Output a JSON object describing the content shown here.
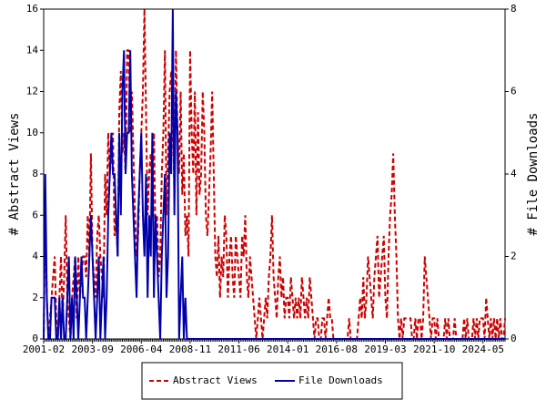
{
  "chart_data": {
    "type": "line",
    "ylabel": "# Abstract Views",
    "y2label": "# File Downloads",
    "ylim": [
      0,
      16
    ],
    "yticks": [
      0,
      2,
      4,
      6,
      8,
      10,
      12,
      14,
      16
    ],
    "y2lim": [
      0,
      8
    ],
    "y2ticks": [
      0,
      2,
      4,
      6,
      8
    ],
    "legend": "bottom",
    "categories": [
      "2001-02",
      null,
      null,
      null,
      null,
      null,
      null,
      null,
      null,
      null,
      null,
      null,
      null,
      null,
      null,
      null,
      null,
      null,
      null,
      null,
      null,
      null,
      null,
      null,
      null,
      null,
      null,
      null,
      null,
      null,
      null,
      "2003-09",
      null,
      null,
      null,
      null,
      null,
      null,
      null,
      null,
      null,
      null,
      null,
      null,
      null,
      null,
      null,
      null,
      null,
      null,
      null,
      null,
      null,
      null,
      null,
      null,
      null,
      null,
      null,
      null,
      null,
      null,
      "2006-04",
      null,
      null,
      null,
      null,
      null,
      null,
      null,
      null,
      null,
      null,
      null,
      null,
      null,
      null,
      null,
      null,
      null,
      null,
      null,
      null,
      null,
      null,
      null,
      null,
      null,
      null,
      null,
      null,
      null,
      null,
      "2008-11",
      null,
      null,
      null,
      null,
      null,
      null,
      null,
      null,
      null,
      null,
      null,
      null,
      null,
      null,
      null,
      null,
      null,
      null,
      null,
      null,
      null,
      null,
      null,
      null,
      null,
      null,
      null,
      null,
      null,
      null,
      "2011-06",
      null,
      null,
      null,
      null,
      null,
      null,
      null,
      null,
      null,
      null,
      null,
      null,
      null,
      null,
      null,
      null,
      null,
      null,
      null,
      null,
      null,
      null,
      null,
      null,
      null,
      null,
      null,
      null,
      null,
      null,
      "2014-01",
      null,
      null,
      null,
      null,
      null,
      null,
      null,
      null,
      null,
      null,
      null,
      null,
      null,
      null,
      null,
      null,
      null,
      null,
      null,
      null,
      null,
      null,
      null,
      null,
      null,
      null,
      null,
      null,
      null,
      null,
      "2016-08",
      null,
      null,
      null,
      null,
      null,
      null,
      null,
      null,
      null,
      null,
      null,
      null,
      null,
      null,
      null,
      null,
      null,
      null,
      null,
      null,
      null,
      null,
      null,
      null,
      null,
      null,
      null,
      null,
      null,
      null,
      "2019-03",
      null,
      null,
      null,
      null,
      null,
      null,
      null,
      null,
      null,
      null,
      null,
      null,
      null,
      null,
      null,
      null,
      null,
      null,
      null,
      null,
      null,
      null,
      null,
      null,
      null,
      null,
      null,
      null,
      null,
      null,
      "2021-10",
      null,
      null,
      null,
      null,
      null,
      null,
      null,
      null,
      null,
      null,
      null,
      null,
      null,
      null,
      null,
      null,
      null,
      null,
      null,
      null,
      null,
      null,
      null,
      null,
      null,
      null,
      null,
      null,
      null,
      null,
      "2024-05",
      null,
      null,
      null,
      null,
      null,
      null,
      null,
      null,
      null,
      null,
      null,
      null,
      null,
      null
    ],
    "series": [
      {
        "name": "Abstract Views",
        "color": "#cc0000",
        "dash": true,
        "values": [
          0,
          6,
          2,
          0,
          1,
          2,
          3,
          4,
          1,
          0,
          2,
          4,
          1,
          3,
          6,
          2,
          1,
          0,
          2,
          3,
          4,
          1,
          4,
          2,
          3,
          4,
          4,
          3,
          6,
          4,
          9,
          4,
          3,
          2,
          5,
          6,
          4,
          3,
          2,
          8,
          6,
          10,
          8,
          9,
          10,
          5,
          6,
          4,
          11,
          13,
          9,
          10,
          8,
          14,
          14,
          10,
          12,
          9,
          6,
          4,
          5,
          8,
          10,
          12,
          16,
          11,
          6,
          8,
          9,
          7,
          10,
          5,
          6,
          3,
          4,
          8,
          10,
          14,
          6,
          9,
          12,
          13,
          11,
          7,
          14,
          10,
          8,
          12,
          7,
          9,
          5,
          6,
          4,
          14,
          10,
          8,
          12,
          6,
          11,
          7,
          8,
          12,
          10,
          6,
          5,
          7,
          9,
          12,
          8,
          4,
          3,
          5,
          2,
          4,
          3,
          6,
          5,
          2,
          4,
          5,
          3,
          2,
          5,
          4,
          3,
          2,
          5,
          4,
          6,
          3,
          2,
          4,
          3,
          2,
          1,
          0,
          1,
          2,
          1,
          0,
          1,
          2,
          1,
          3,
          4,
          6,
          3,
          2,
          1,
          3,
          4,
          2,
          3,
          1,
          2,
          2,
          1,
          3,
          2,
          1,
          2,
          1,
          2,
          1,
          3,
          2,
          1,
          2,
          1,
          3,
          2,
          1,
          0,
          1,
          1,
          0,
          0,
          1,
          1,
          0,
          1,
          2,
          1,
          1,
          0,
          0,
          0,
          0,
          0,
          0,
          0,
          0,
          0,
          0,
          1,
          0,
          0,
          0,
          0,
          0,
          1,
          2,
          1,
          3,
          1,
          2,
          4,
          3,
          2,
          1,
          3,
          4,
          5,
          2,
          3,
          4,
          5,
          2,
          1,
          4,
          6,
          7,
          9,
          6,
          4,
          1,
          0,
          1,
          0,
          1,
          1,
          1,
          1,
          1,
          0,
          0,
          1,
          0,
          1,
          1,
          0,
          1,
          4,
          3,
          2,
          1,
          0,
          1,
          1,
          0,
          1,
          0,
          0,
          0,
          0,
          1,
          0,
          1,
          0,
          0,
          0,
          1,
          0,
          0,
          0,
          0,
          0,
          1,
          0,
          1,
          0,
          0,
          0,
          1,
          0,
          1,
          0,
          1,
          1,
          1,
          0,
          2,
          1,
          0,
          1,
          0,
          1,
          0,
          1,
          0,
          1,
          0,
          0,
          1
        ]
      },
      {
        "name": "File Downloads",
        "color": "#0000aa",
        "axis": "y2",
        "values": [
          0,
          4,
          1,
          0,
          0,
          1,
          1,
          1,
          0,
          0,
          1,
          0,
          1,
          0,
          0,
          1,
          2,
          0,
          1,
          0,
          2,
          1,
          0,
          1,
          2,
          1,
          1,
          0,
          1,
          2,
          3,
          2,
          1,
          0,
          1,
          2,
          0,
          1,
          2,
          0,
          1,
          3,
          4,
          5,
          4,
          4,
          3,
          2,
          5,
          3,
          6,
          7,
          4,
          5,
          5,
          7,
          4,
          3,
          2,
          1,
          3,
          4,
          5,
          3,
          2,
          4,
          1,
          3,
          2,
          5,
          1,
          3,
          2,
          1,
          0,
          2,
          3,
          4,
          1,
          2,
          5,
          4,
          8,
          3,
          6,
          5,
          0,
          1,
          2,
          0,
          1,
          0,
          0,
          0,
          0,
          0,
          0,
          0,
          0,
          0,
          0,
          0,
          0,
          0,
          0,
          0,
          0,
          0,
          0,
          0,
          0,
          0,
          0,
          0,
          0,
          0,
          0,
          0,
          0,
          0,
          0,
          0,
          0,
          0,
          0,
          0,
          0,
          0,
          0,
          0,
          0,
          0,
          0,
          0,
          0,
          0,
          0,
          0,
          0,
          0,
          0,
          0,
          0,
          0,
          0,
          0,
          0,
          0,
          0,
          0,
          0,
          0,
          0,
          0,
          0,
          0,
          0,
          0,
          0,
          0,
          0,
          0,
          0,
          0,
          0,
          0,
          0,
          0,
          0,
          0,
          0,
          0,
          0,
          0,
          0,
          0,
          0,
          0,
          0,
          0,
          0,
          0,
          0,
          0,
          0,
          0,
          0,
          0,
          0,
          0,
          0,
          0,
          0,
          0,
          0,
          0,
          0,
          0,
          0,
          0,
          0,
          0,
          0,
          0,
          0,
          0,
          0,
          0,
          0,
          0,
          0,
          0,
          0,
          0,
          0,
          0,
          0,
          0,
          0,
          0,
          0,
          0,
          0,
          0,
          0,
          0,
          0,
          0,
          0,
          0,
          0,
          0,
          0,
          0,
          0,
          0,
          0,
          0,
          0,
          0,
          0,
          0,
          0,
          0,
          0,
          0,
          0,
          0,
          0,
          0,
          0,
          0,
          0,
          0,
          0,
          0,
          0,
          0,
          0,
          0,
          0,
          0,
          0,
          0,
          0,
          0,
          0,
          0,
          0,
          0,
          0,
          0,
          0,
          0,
          0,
          0,
          0,
          0,
          0,
          0,
          0,
          0,
          0,
          0,
          0,
          0,
          0,
          0,
          0,
          0,
          0,
          0,
          0,
          0
        ]
      }
    ]
  }
}
